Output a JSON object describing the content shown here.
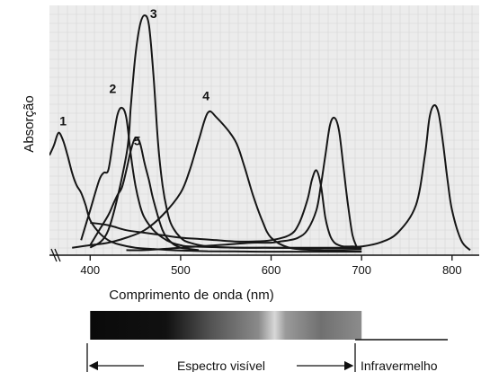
{
  "chart_data": {
    "type": "line",
    "title": "",
    "xlabel": "Comprimento de onda (nm)",
    "ylabel": "Absorção",
    "xlim": [
      355,
      830
    ],
    "ylim": [
      0,
      100
    ],
    "x_ticks": [
      400,
      500,
      600,
      700,
      800
    ],
    "x_tick_labels": [
      "400",
      "500",
      "600",
      "700",
      "800"
    ],
    "grid": true,
    "axis_break": "left",
    "series": [
      {
        "name": "1",
        "label_at": [
          370,
          52
        ],
        "x": [
          355,
          360,
          365,
          370,
          375,
          380,
          385,
          390,
          395,
          400,
          410,
          420,
          430,
          450,
          470,
          490,
          510,
          530,
          560,
          590,
          620,
          650,
          680,
          700
        ],
        "y": [
          40,
          44,
          49,
          46,
          40,
          33,
          28,
          25,
          20,
          14,
          9,
          6,
          4.5,
          3,
          2.5,
          2,
          1.8,
          1.6,
          1.5,
          1.4,
          1.4,
          1.4,
          1.4,
          1.4
        ]
      },
      {
        "name": "2",
        "label_at": [
          425,
          65
        ],
        "x": [
          390,
          400,
          410,
          415,
          420,
          425,
          430,
          435,
          440,
          445,
          450,
          455,
          460,
          470,
          480,
          490,
          500,
          510,
          540,
          570,
          600,
          640,
          680,
          700
        ],
        "y": [
          6,
          18,
          30,
          33,
          34,
          45,
          56,
          59,
          55,
          40,
          28,
          20,
          15,
          10,
          7,
          5,
          4,
          3.5,
          3.2,
          3,
          3,
          2.8,
          2.6,
          2.5
        ]
      },
      {
        "name": "3",
        "label_at": [
          470,
          95
        ],
        "x": [
          400,
          420,
          440,
          445,
          450,
          455,
          460,
          465,
          470,
          475,
          480,
          485,
          490,
          500,
          510,
          530,
          560,
          600,
          650,
          700
        ],
        "y": [
          3,
          10,
          40,
          60,
          80,
          92,
          96,
          92,
          72,
          45,
          28,
          18,
          12,
          7,
          5,
          3.5,
          3,
          3,
          3,
          3
        ]
      },
      {
        "name": "4",
        "label_at": [
          528,
          62
        ],
        "x": [
          380,
          400,
          420,
          440,
          460,
          480,
          500,
          510,
          520,
          530,
          540,
          560,
          570,
          580,
          590,
          600,
          620,
          650,
          680,
          700
        ],
        "y": [
          3,
          4,
          5,
          7,
          10,
          16,
          25,
          34,
          46,
          57,
          55,
          46,
          36,
          24,
          14,
          7,
          3,
          2,
          1.8,
          1.6
        ]
      },
      {
        "name": "5",
        "label_at": [
          452,
          44
        ],
        "x": [
          400,
          410,
          420,
          425,
          430,
          435,
          440,
          445,
          450,
          455,
          460,
          465,
          470,
          480,
          490,
          500,
          510,
          520
        ],
        "y": [
          4,
          10,
          16,
          20,
          24,
          27,
          34,
          42,
          47,
          45,
          37,
          30,
          22,
          10,
          5,
          3,
          2.5,
          2
        ]
      },
      {
        "name": "",
        "label_at": null,
        "x": [
          400,
          420,
          440,
          460,
          480,
          500,
          520,
          540,
          560,
          580,
          600,
          620,
          630,
          640,
          645,
          650,
          655,
          660,
          665,
          670,
          675,
          680,
          690,
          700,
          720,
          740,
          760,
          770,
          775,
          780,
          785,
          790,
          795,
          800,
          810,
          820
        ],
        "y": [
          13,
          12,
          10,
          9,
          8,
          7,
          6.5,
          6,
          5.5,
          5.5,
          6,
          8,
          12,
          22,
          30,
          34,
          28,
          15,
          8,
          5,
          4,
          3.5,
          3.5,
          3.5,
          5,
          9,
          20,
          40,
          55,
          60,
          57,
          45,
          30,
          18,
          6,
          2
        ]
      },
      {
        "name": "",
        "label_at": null,
        "x": [
          440,
          460,
          480,
          500,
          520,
          540,
          560,
          580,
          600,
          610,
          620,
          630,
          640,
          650,
          655,
          660,
          665,
          670,
          675,
          680,
          685,
          690,
          695
        ],
        "y": [
          2,
          2,
          2.5,
          3,
          3.5,
          4,
          4.5,
          5,
          5,
          5.5,
          6,
          7,
          10,
          18,
          28,
          40,
          52,
          55,
          50,
          35,
          20,
          8,
          3
        ]
      }
    ]
  },
  "spectrum": {
    "visible_label": "Espectro visível",
    "infrared_label": "Infravermelho",
    "visible_range": [
      400,
      700
    ]
  }
}
